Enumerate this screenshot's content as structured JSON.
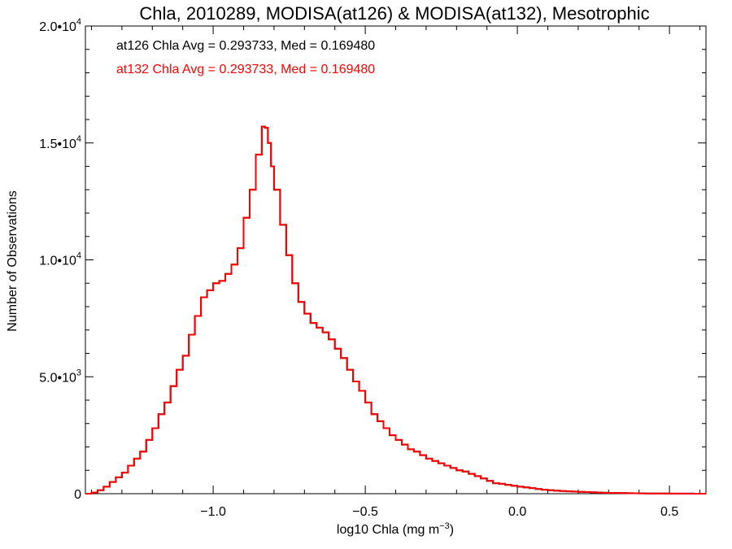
{
  "chart_data": {
    "type": "line",
    "title": "Chla, 2010289, MODISA(at126) & MODISA(at132), Mesotrophic",
    "xlabel": "log10 Chla (mg m",
    "xlabel_sup": "−3",
    "xlabel_close": ")",
    "ylabel": "Number of Observations",
    "xlim": [
      -1.42,
      0.62
    ],
    "ylim": [
      0,
      20000
    ],
    "x_ticks": [
      {
        "value": -1.0,
        "label": "−1.0"
      },
      {
        "value": -0.5,
        "label": "−0.5"
      },
      {
        "value": 0.0,
        "label": "0.0"
      },
      {
        "value": 0.5,
        "label": "0.5"
      }
    ],
    "y_ticks": [
      {
        "value": 0,
        "mant": "0",
        "exp": ""
      },
      {
        "value": 5000,
        "mant": "5.0•10",
        "exp": "3"
      },
      {
        "value": 10000,
        "mant": "1.0•10",
        "exp": "4"
      },
      {
        "value": 15000,
        "mant": "1.5•10",
        "exp": "4"
      },
      {
        "value": 20000,
        "mant": "2.0•10",
        "exp": "4"
      }
    ],
    "annotations": [
      {
        "text": "at126 Chla Avg = 0.293733, Med = 0.169480",
        "color": "#000000"
      },
      {
        "text": "at132 Chla Avg = 0.293733, Med = 0.169480",
        "color": "#ff0000"
      }
    ],
    "series": [
      {
        "name": "at126",
        "color": "#000000",
        "x": [
          -1.42,
          -1.4,
          -1.38,
          -1.36,
          -1.34,
          -1.32,
          -1.3,
          -1.28,
          -1.26,
          -1.24,
          -1.22,
          -1.2,
          -1.18,
          -1.16,
          -1.14,
          -1.12,
          -1.1,
          -1.08,
          -1.06,
          -1.04,
          -1.02,
          -1.0,
          -0.98,
          -0.96,
          -0.94,
          -0.92,
          -0.9,
          -0.88,
          -0.86,
          -0.84,
          -0.83,
          -0.82,
          -0.81,
          -0.8,
          -0.78,
          -0.76,
          -0.74,
          -0.72,
          -0.7,
          -0.68,
          -0.66,
          -0.64,
          -0.62,
          -0.6,
          -0.58,
          -0.56,
          -0.54,
          -0.52,
          -0.5,
          -0.48,
          -0.46,
          -0.44,
          -0.42,
          -0.4,
          -0.38,
          -0.36,
          -0.34,
          -0.32,
          -0.3,
          -0.28,
          -0.26,
          -0.24,
          -0.22,
          -0.2,
          -0.18,
          -0.16,
          -0.14,
          -0.12,
          -0.1,
          -0.08,
          -0.06,
          -0.04,
          -0.02,
          0.0,
          0.02,
          0.04,
          0.06,
          0.08,
          0.1,
          0.12,
          0.14,
          0.16,
          0.18,
          0.2,
          0.22,
          0.24,
          0.26,
          0.28,
          0.3,
          0.32,
          0.34,
          0.36,
          0.38,
          0.4,
          0.42,
          0.44,
          0.46,
          0.48,
          0.5,
          0.52,
          0.54,
          0.56,
          0.58,
          0.6,
          0.62
        ],
        "y": [
          0,
          50,
          150,
          300,
          500,
          700,
          900,
          1200,
          1500,
          1800,
          2300,
          2800,
          3400,
          3900,
          4600,
          5300,
          5900,
          6800,
          7600,
          8400,
          8700,
          9000,
          9100,
          9400,
          9800,
          10500,
          11800,
          13000,
          14500,
          15700,
          15650,
          15000,
          14000,
          13000,
          11500,
          10200,
          9000,
          8200,
          7700,
          7300,
          7100,
          6900,
          6600,
          6200,
          5800,
          5300,
          4800,
          4400,
          3900,
          3400,
          3100,
          2800,
          2500,
          2300,
          2100,
          1900,
          1800,
          1650,
          1500,
          1400,
          1300,
          1200,
          1100,
          1000,
          950,
          850,
          750,
          650,
          550,
          450,
          420,
          380,
          340,
          300,
          270,
          240,
          200,
          170,
          150,
          130,
          110,
          100,
          90,
          80,
          70,
          60,
          50,
          40,
          35,
          30,
          25,
          20,
          18,
          15,
          12,
          10,
          8,
          6,
          5,
          4,
          3,
          2,
          1,
          0,
          0
        ]
      },
      {
        "name": "at132",
        "color": "#ff0000",
        "x": [
          -1.42,
          -1.4,
          -1.38,
          -1.36,
          -1.34,
          -1.32,
          -1.3,
          -1.28,
          -1.26,
          -1.24,
          -1.22,
          -1.2,
          -1.18,
          -1.16,
          -1.14,
          -1.12,
          -1.1,
          -1.08,
          -1.06,
          -1.04,
          -1.02,
          -1.0,
          -0.98,
          -0.96,
          -0.94,
          -0.92,
          -0.9,
          -0.88,
          -0.86,
          -0.84,
          -0.83,
          -0.82,
          -0.81,
          -0.8,
          -0.78,
          -0.76,
          -0.74,
          -0.72,
          -0.7,
          -0.68,
          -0.66,
          -0.64,
          -0.62,
          -0.6,
          -0.58,
          -0.56,
          -0.54,
          -0.52,
          -0.5,
          -0.48,
          -0.46,
          -0.44,
          -0.42,
          -0.4,
          -0.38,
          -0.36,
          -0.34,
          -0.32,
          -0.3,
          -0.28,
          -0.26,
          -0.24,
          -0.22,
          -0.2,
          -0.18,
          -0.16,
          -0.14,
          -0.12,
          -0.1,
          -0.08,
          -0.06,
          -0.04,
          -0.02,
          0.0,
          0.02,
          0.04,
          0.06,
          0.08,
          0.1,
          0.12,
          0.14,
          0.16,
          0.18,
          0.2,
          0.22,
          0.24,
          0.26,
          0.28,
          0.3,
          0.32,
          0.34,
          0.36,
          0.38,
          0.4,
          0.42,
          0.44,
          0.46,
          0.48,
          0.5,
          0.52,
          0.54,
          0.56,
          0.58,
          0.6,
          0.62
        ],
        "y": [
          0,
          50,
          150,
          300,
          500,
          700,
          900,
          1200,
          1500,
          1800,
          2300,
          2800,
          3400,
          3900,
          4600,
          5300,
          5900,
          6800,
          7600,
          8400,
          8700,
          9000,
          9100,
          9400,
          9800,
          10500,
          11800,
          13000,
          14500,
          15700,
          15650,
          15000,
          14000,
          13000,
          11500,
          10200,
          9000,
          8200,
          7700,
          7300,
          7100,
          6900,
          6600,
          6200,
          5800,
          5300,
          4800,
          4400,
          3900,
          3400,
          3100,
          2800,
          2500,
          2300,
          2100,
          1900,
          1800,
          1650,
          1500,
          1400,
          1300,
          1200,
          1100,
          1000,
          950,
          850,
          750,
          650,
          550,
          450,
          420,
          380,
          340,
          300,
          270,
          240,
          200,
          170,
          150,
          130,
          110,
          100,
          90,
          80,
          70,
          60,
          50,
          40,
          35,
          30,
          25,
          20,
          18,
          15,
          12,
          10,
          8,
          6,
          5,
          4,
          3,
          2,
          1,
          0,
          0
        ]
      }
    ]
  }
}
